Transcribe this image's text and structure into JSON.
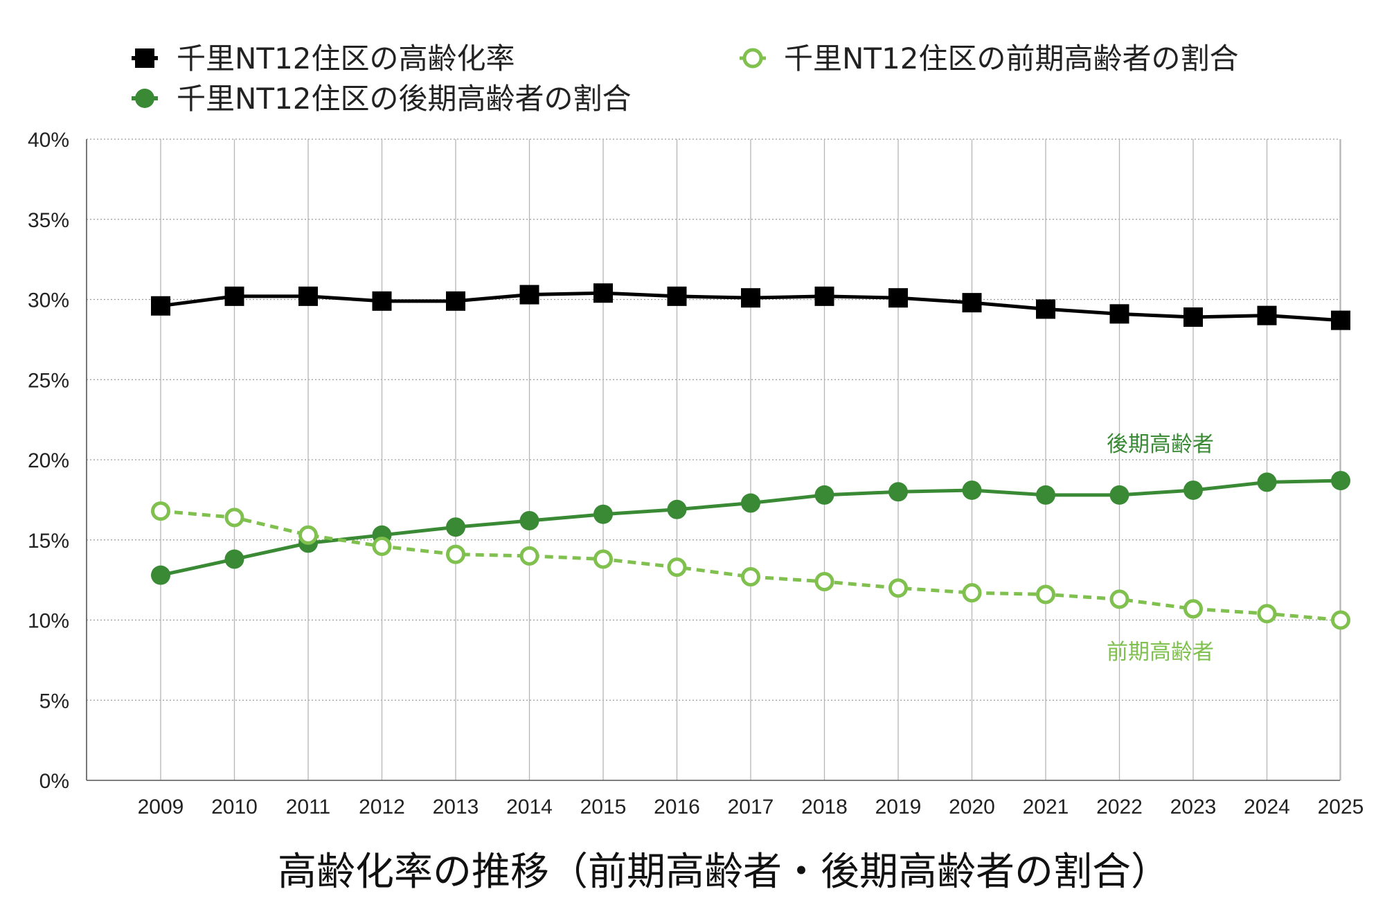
{
  "chart_data": {
    "type": "line",
    "title": "高齢化率の推移（前期高齢者・後期高齢者の割合）",
    "xlabel": "",
    "ylabel": "",
    "categories": [
      "2009",
      "2010",
      "2011",
      "2012",
      "2013",
      "2014",
      "2015",
      "2016",
      "2017",
      "2018",
      "2019",
      "2020",
      "2021",
      "2022",
      "2023",
      "2024",
      "2025"
    ],
    "yticks": [
      "0%",
      "5%",
      "10%",
      "15%",
      "20%",
      "25%",
      "30%",
      "35%",
      "40%"
    ],
    "ylim": [
      0,
      40
    ],
    "grid": true,
    "legend_position": "top",
    "series": [
      {
        "name": "千里NT12住区の高齢化率",
        "marker": "square",
        "line": "solid",
        "color": "#000000",
        "values": [
          29.6,
          30.2,
          30.2,
          29.9,
          29.9,
          30.3,
          30.4,
          30.2,
          30.1,
          30.2,
          30.1,
          29.8,
          29.4,
          29.1,
          28.9,
          29.0,
          28.7
        ]
      },
      {
        "name": "千里NT12住区の後期高齢者の割合",
        "marker": "circle-filled",
        "line": "solid",
        "color": "#3a8a35",
        "values": [
          12.8,
          13.8,
          14.8,
          15.3,
          15.8,
          16.2,
          16.6,
          16.9,
          17.3,
          17.8,
          18.0,
          18.1,
          17.8,
          17.8,
          18.1,
          18.6,
          18.7
        ]
      },
      {
        "name": "千里NT12住区の前期高齢者の割合",
        "marker": "circle-open",
        "line": "dashed",
        "color": "#7fc04e",
        "values": [
          16.8,
          16.4,
          15.3,
          14.6,
          14.1,
          14.0,
          13.8,
          13.3,
          12.7,
          12.4,
          12.0,
          11.7,
          11.6,
          11.3,
          10.7,
          10.4,
          10.0
        ]
      }
    ],
    "annotations": [
      {
        "text": "後期高齢者",
        "color": "#3a8a35",
        "near_series": 1
      },
      {
        "text": "前期高齢者",
        "color": "#7fc04e",
        "near_series": 2
      }
    ]
  }
}
